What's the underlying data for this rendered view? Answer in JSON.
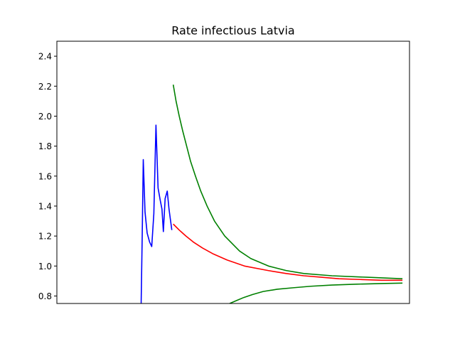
{
  "chart_data": {
    "type": "line",
    "title": "Rate infectious Latvia",
    "xlabel": "",
    "ylabel": "",
    "xlim": [
      0,
      100
    ],
    "ylim": [
      0.75,
      2.5
    ],
    "yticks": [
      0.8,
      1.0,
      1.2,
      1.4,
      1.6,
      1.8,
      2.0,
      2.2,
      2.4
    ],
    "ytick_labels": [
      "0.8",
      "1.0",
      "1.2",
      "1.4",
      "1.6",
      "1.8",
      "2.0",
      "2.2",
      "2.4"
    ],
    "xticks_visible": false,
    "grid": false,
    "legend": "none",
    "series": [
      {
        "key": "observed",
        "color": "#0000ff",
        "points": [
          [
            23.9,
            0.75
          ],
          [
            24.2,
            1.2
          ],
          [
            24.5,
            1.71
          ],
          [
            25.0,
            1.36
          ],
          [
            25.6,
            1.22
          ],
          [
            26.3,
            1.16
          ],
          [
            26.9,
            1.13
          ],
          [
            27.5,
            1.35
          ],
          [
            28.1,
            1.94
          ],
          [
            28.7,
            1.52
          ],
          [
            29.3,
            1.44
          ],
          [
            29.8,
            1.38
          ],
          [
            30.2,
            1.23
          ],
          [
            30.7,
            1.45
          ],
          [
            31.3,
            1.5
          ],
          [
            31.8,
            1.38
          ],
          [
            32.2,
            1.31
          ],
          [
            32.6,
            1.24
          ]
        ]
      },
      {
        "key": "forecast-mean",
        "color": "#ff0000",
        "points": [
          [
            33.0,
            1.28
          ],
          [
            34.7,
            1.24
          ],
          [
            36.6,
            1.2
          ],
          [
            38.7,
            1.16
          ],
          [
            41.3,
            1.12
          ],
          [
            44.4,
            1.08
          ],
          [
            48.3,
            1.04
          ],
          [
            53.2,
            1.0
          ],
          [
            59.9,
            0.97
          ],
          [
            65.0,
            0.95
          ],
          [
            70.0,
            0.935
          ],
          [
            75.0,
            0.925
          ],
          [
            80.0,
            0.915
          ],
          [
            86.0,
            0.91
          ],
          [
            92.0,
            0.905
          ],
          [
            98.0,
            0.905
          ]
        ]
      },
      {
        "key": "forecast-upper",
        "color": "#008000",
        "points": [
          [
            33.0,
            2.21
          ],
          [
            33.8,
            2.1
          ],
          [
            34.7,
            2.0
          ],
          [
            35.7,
            1.9
          ],
          [
            36.8,
            1.8
          ],
          [
            37.9,
            1.7
          ],
          [
            39.3,
            1.6
          ],
          [
            40.8,
            1.5
          ],
          [
            42.6,
            1.4
          ],
          [
            44.7,
            1.3
          ],
          [
            47.6,
            1.2
          ],
          [
            51.8,
            1.1
          ],
          [
            55.0,
            1.05
          ],
          [
            60.0,
            1.0
          ],
          [
            65.0,
            0.97
          ],
          [
            70.0,
            0.95
          ],
          [
            78.0,
            0.935
          ],
          [
            88.0,
            0.925
          ],
          [
            98.0,
            0.915
          ]
        ]
      },
      {
        "key": "forecast-lower",
        "color": "#008000",
        "points": [
          [
            49.0,
            0.75
          ],
          [
            51.0,
            0.77
          ],
          [
            53.0,
            0.79
          ],
          [
            55.5,
            0.81
          ],
          [
            58.5,
            0.83
          ],
          [
            62.5,
            0.845
          ],
          [
            67.0,
            0.855
          ],
          [
            72.0,
            0.865
          ],
          [
            78.0,
            0.873
          ],
          [
            85.0,
            0.879
          ],
          [
            92.0,
            0.883
          ],
          [
            98.0,
            0.886
          ]
        ]
      }
    ]
  }
}
